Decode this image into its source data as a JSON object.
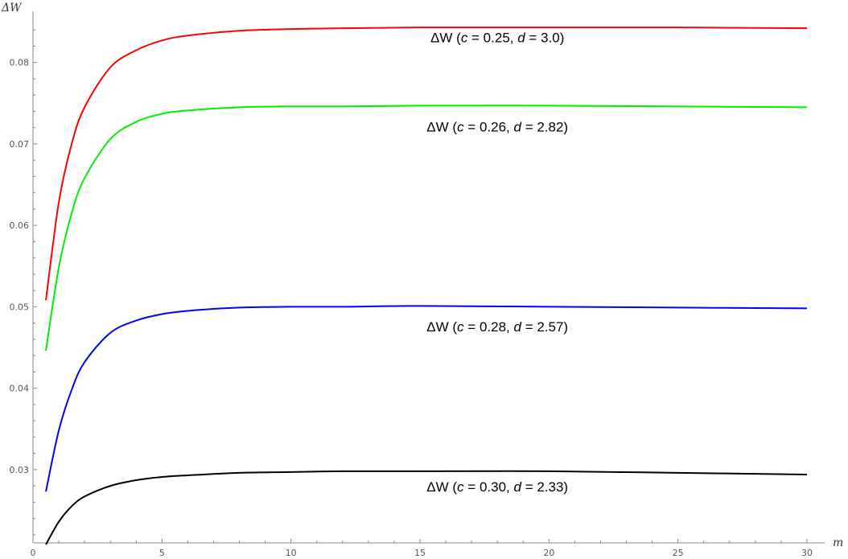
{
  "chart_data": {
    "type": "line",
    "title": "",
    "xlabel": "m",
    "ylabel": "ΔW",
    "xlim": [
      0,
      30
    ],
    "ylim": [
      0.021,
      0.0855
    ],
    "grid": false,
    "x_ticks": [
      {
        "value": 0,
        "label": "0"
      },
      {
        "value": 5,
        "label": "5"
      },
      {
        "value": 10,
        "label": "10"
      },
      {
        "value": 15,
        "label": "15"
      },
      {
        "value": 20,
        "label": "20"
      },
      {
        "value": 25,
        "label": "25"
      },
      {
        "value": 30,
        "label": "30"
      }
    ],
    "y_ticks": [
      {
        "value": 0.03,
        "label": "0.03"
      },
      {
        "value": 0.04,
        "label": "0.04"
      },
      {
        "value": 0.05,
        "label": "0.05"
      },
      {
        "value": 0.06,
        "label": "0.06"
      },
      {
        "value": 0.07,
        "label": "0.07"
      },
      {
        "value": 0.08,
        "label": "0.08"
      }
    ],
    "series": [
      {
        "label_parts": [
          "ΔW (",
          "c",
          " = 0.25, ",
          "d",
          " = 3.0)"
        ],
        "color": "#ff0000",
        "label_anchor": {
          "x": 18,
          "y": 0.0825
        },
        "x": [
          0.5,
          1,
          1.5,
          2,
          3,
          4,
          5,
          6,
          8,
          10,
          12,
          15,
          20,
          25,
          30
        ],
        "y": [
          0.0508,
          0.0628,
          0.07,
          0.0745,
          0.0794,
          0.0815,
          0.0827,
          0.0833,
          0.0839,
          0.0841,
          0.0842,
          0.0843,
          0.0843,
          0.0843,
          0.0842
        ]
      },
      {
        "label_parts": [
          "ΔW (",
          "c",
          " = 0.26, ",
          "d",
          " = 2.82)"
        ],
        "color": "#00ee00",
        "label_anchor": {
          "x": 18,
          "y": 0.0715
        },
        "x": [
          0.5,
          1,
          1.5,
          2,
          3,
          4,
          5,
          6,
          8,
          10,
          12,
          15,
          20,
          25,
          30
        ],
        "y": [
          0.0446,
          0.0548,
          0.0615,
          0.0658,
          0.0706,
          0.0727,
          0.0737,
          0.0741,
          0.0745,
          0.0746,
          0.0746,
          0.0747,
          0.0747,
          0.0746,
          0.0745
        ]
      },
      {
        "label_parts": [
          "ΔW (",
          "c",
          " = 0.28, ",
          "d",
          " = 2.57)"
        ],
        "color": "#0000ff",
        "label_anchor": {
          "x": 18,
          "y": 0.047
        },
        "x": [
          0.5,
          1,
          1.5,
          2,
          3,
          4,
          5,
          6,
          8,
          10,
          12,
          15,
          20,
          25,
          30
        ],
        "y": [
          0.0273,
          0.0348,
          0.0398,
          0.0432,
          0.0468,
          0.0483,
          0.0491,
          0.0495,
          0.0499,
          0.05,
          0.05,
          0.0501,
          0.05,
          0.0499,
          0.0498
        ]
      },
      {
        "label_parts": [
          "ΔW (",
          "c",
          " = 0.30, ",
          "d",
          " = 2.33)"
        ],
        "color": "#000000",
        "label_anchor": {
          "x": 18,
          "y": 0.0273
        },
        "x": [
          0.5,
          1,
          1.5,
          2,
          3,
          4,
          5,
          6,
          8,
          10,
          12,
          15,
          20,
          25,
          30
        ],
        "y": [
          0.0208,
          0.0236,
          0.0255,
          0.0267,
          0.028,
          0.0287,
          0.0291,
          0.0293,
          0.0296,
          0.0297,
          0.0298,
          0.0298,
          0.0298,
          0.0296,
          0.0294
        ]
      }
    ]
  }
}
